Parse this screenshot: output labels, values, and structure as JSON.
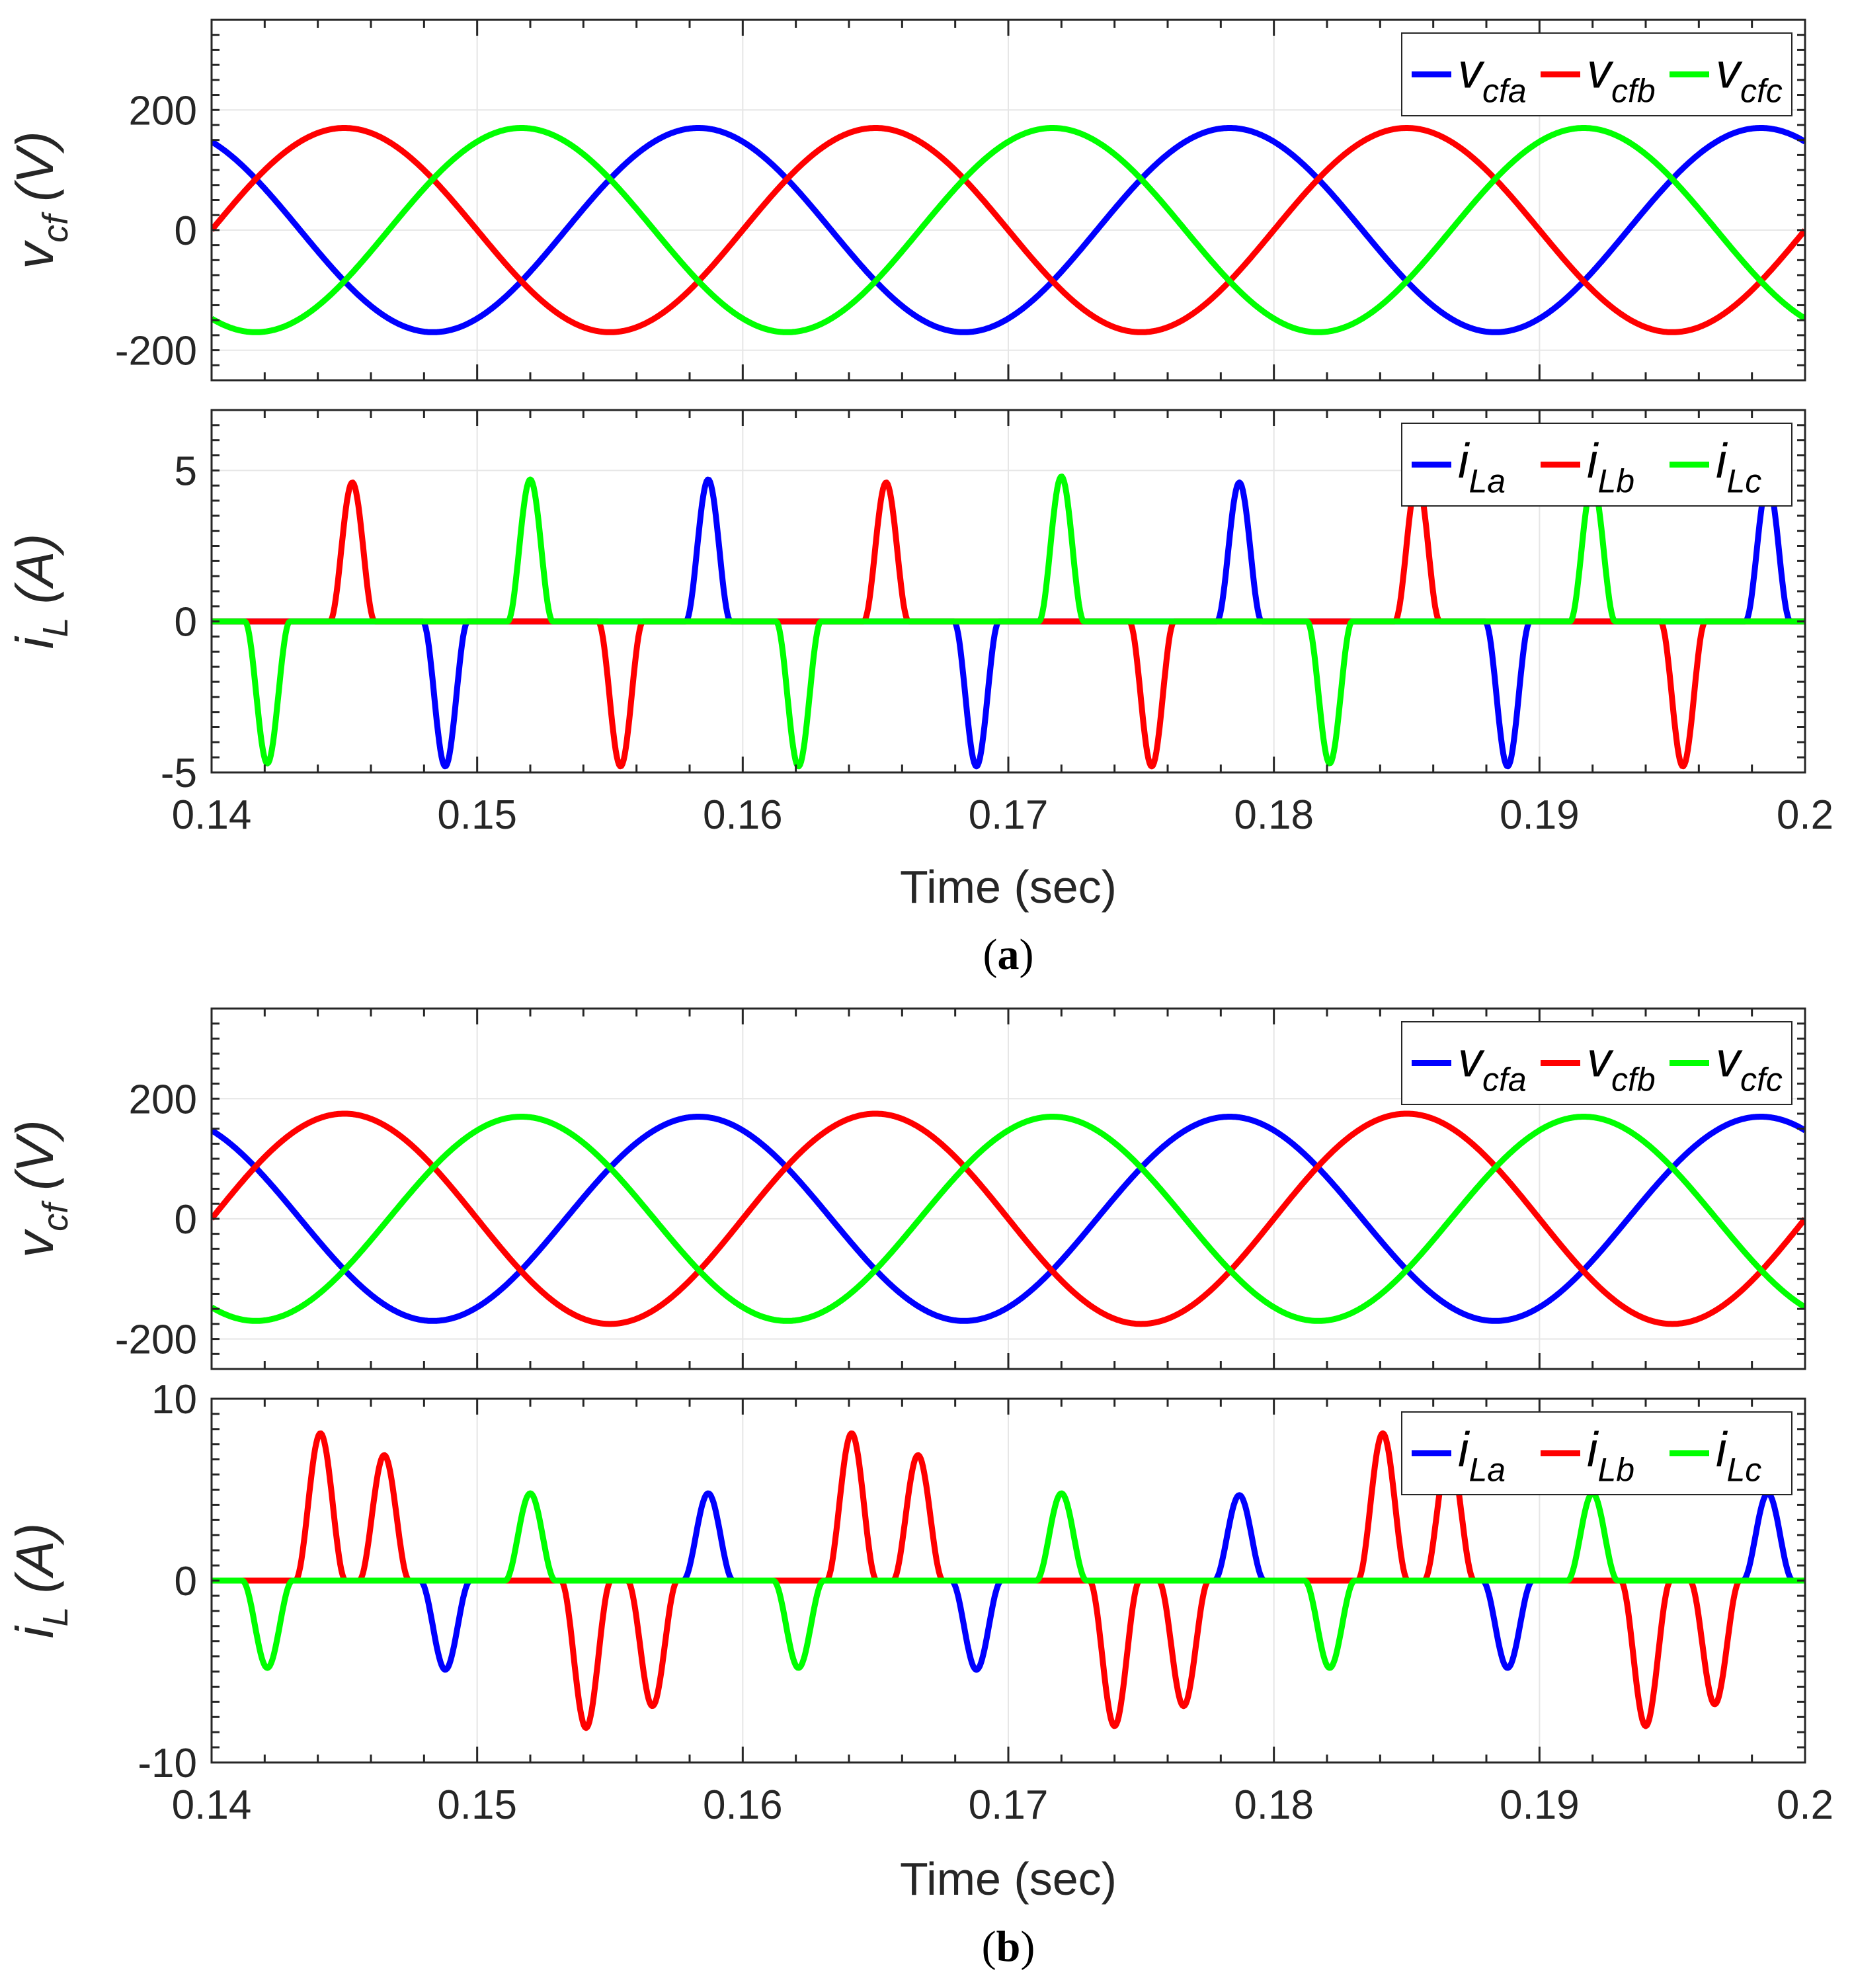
{
  "chart_data": [
    {
      "type": "line",
      "panel": "a-top",
      "ylabel_main": "v",
      "ylabel_sub": "cf",
      "ylabel_unit": "(V)",
      "xlim": [
        0.14,
        0.2
      ],
      "ylim": [
        -250,
        350
      ],
      "yticks": [
        "-200",
        "0",
        "200"
      ],
      "series": [
        {
          "name": "v_cfa",
          "label_main": "v",
          "label_sub": "cfa",
          "color": "#0000ff",
          "amplitude": 170,
          "phase_deg": 30,
          "freq_hz": 50
        },
        {
          "name": "v_cfb",
          "label_main": "v",
          "label_sub": "cfb",
          "color": "#ff0000",
          "amplitude": 170,
          "phase_deg": -90,
          "freq_hz": 50
        },
        {
          "name": "v_cfc",
          "label_main": "v",
          "label_sub": "cfc",
          "color": "#00ff00",
          "amplitude": 170,
          "phase_deg": 150,
          "freq_hz": 50
        }
      ]
    },
    {
      "type": "line",
      "panel": "a-bottom",
      "ylabel_main": "i",
      "ylabel_sub": "L",
      "ylabel_unit": "(A)",
      "xlim": [
        0.14,
        0.2
      ],
      "ylim": [
        -5,
        7
      ],
      "yticks": [
        "-5",
        "0",
        "5"
      ],
      "xticks": [
        "0.14",
        "0.15",
        "0.16",
        "0.17",
        "0.18",
        "0.19",
        "0.2"
      ],
      "xlabel": "Time (sec)",
      "pulse_width_s": 0.0017,
      "series": [
        {
          "name": "i_La",
          "label_main": "i",
          "label_sub": "La",
          "color": "#0000ff",
          "pulses": [
            [
              0.1488,
              -4.8
            ],
            [
              0.1587,
              4.7
            ],
            [
              0.1688,
              -4.8
            ],
            [
              0.1787,
              4.6
            ],
            [
              0.1888,
              -4.8
            ],
            [
              0.1986,
              4.6
            ]
          ]
        },
        {
          "name": "i_Lb",
          "label_main": "i",
          "label_sub": "Lb",
          "color": "#ff0000",
          "pulses": [
            [
              0.1453,
              4.6
            ],
            [
              0.1554,
              -4.8
            ],
            [
              0.1654,
              4.6
            ],
            [
              0.1754,
              -4.8
            ],
            [
              0.1854,
              4.7
            ],
            [
              0.1954,
              -4.8
            ]
          ]
        },
        {
          "name": "i_Lc",
          "label_main": "i",
          "label_sub": "Lc",
          "color": "#00ff00",
          "pulses": [
            [
              0.1421,
              -4.7
            ],
            [
              0.152,
              4.7
            ],
            [
              0.1621,
              -4.8
            ],
            [
              0.172,
              4.8
            ],
            [
              0.1821,
              -4.7
            ],
            [
              0.192,
              4.6
            ]
          ]
        }
      ]
    },
    {
      "type": "line",
      "panel": "b-top",
      "ylabel_main": "v",
      "ylabel_sub": "cf",
      "ylabel_unit": "(V)",
      "xlim": [
        0.14,
        0.2
      ],
      "ylim": [
        -250,
        350
      ],
      "yticks": [
        "-200",
        "0",
        "200"
      ],
      "series": [
        {
          "name": "v_cfa",
          "label_main": "v",
          "label_sub": "cfa",
          "color": "#0000ff",
          "amplitude": 170,
          "phase_deg": 30,
          "freq_hz": 50
        },
        {
          "name": "v_cfb",
          "label_main": "v",
          "label_sub": "cfb",
          "color": "#ff0000",
          "amplitude": 175,
          "phase_deg": -90,
          "freq_hz": 50
        },
        {
          "name": "v_cfc",
          "label_main": "v",
          "label_sub": "cfc",
          "color": "#00ff00",
          "amplitude": 170,
          "phase_deg": 150,
          "freq_hz": 50
        }
      ]
    },
    {
      "type": "line",
      "panel": "b-bottom",
      "ylabel_main": "i",
      "ylabel_sub": "L",
      "ylabel_unit": "(A)",
      "xlim": [
        0.14,
        0.2
      ],
      "ylim": [
        -10,
        10
      ],
      "yticks": [
        "-10",
        "0",
        "10"
      ],
      "xticks": [
        "0.14",
        "0.15",
        "0.16",
        "0.17",
        "0.18",
        "0.19",
        "0.2"
      ],
      "xlabel": "Time (sec)",
      "pulse_width_s": 0.0019,
      "series": [
        {
          "name": "i_La",
          "label_main": "i",
          "label_sub": "La",
          "color": "#0000ff",
          "pulses": [
            [
              0.1488,
              -4.9
            ],
            [
              0.1587,
              4.8
            ],
            [
              0.1688,
              -4.9
            ],
            [
              0.1787,
              4.7
            ],
            [
              0.1888,
              -4.8
            ],
            [
              0.1986,
              4.8
            ]
          ]
        },
        {
          "name": "i_Lb",
          "label_main": "i",
          "label_sub": "Lb",
          "color": "#ff0000",
          "pulses": [
            [
              0.1441,
              8.1
            ],
            [
              0.1465,
              6.9
            ],
            [
              0.1541,
              -8.1
            ],
            [
              0.1566,
              -6.9
            ],
            [
              0.1641,
              8.1
            ],
            [
              0.1666,
              6.9
            ],
            [
              0.174,
              -8.0
            ],
            [
              0.1766,
              -6.9
            ],
            [
              0.1841,
              8.1
            ],
            [
              0.1866,
              7.1
            ],
            [
              0.194,
              -8.0
            ],
            [
              0.1966,
              -6.8
            ]
          ]
        },
        {
          "name": "i_Lc",
          "label_main": "i",
          "label_sub": "Lc",
          "color": "#00ff00",
          "pulses": [
            [
              0.1421,
              -4.8
            ],
            [
              0.152,
              4.8
            ],
            [
              0.1621,
              -4.8
            ],
            [
              0.172,
              4.8
            ],
            [
              0.1821,
              -4.8
            ],
            [
              0.192,
              4.8
            ]
          ]
        }
      ]
    }
  ],
  "captions": {
    "a": "a",
    "b": "b"
  }
}
